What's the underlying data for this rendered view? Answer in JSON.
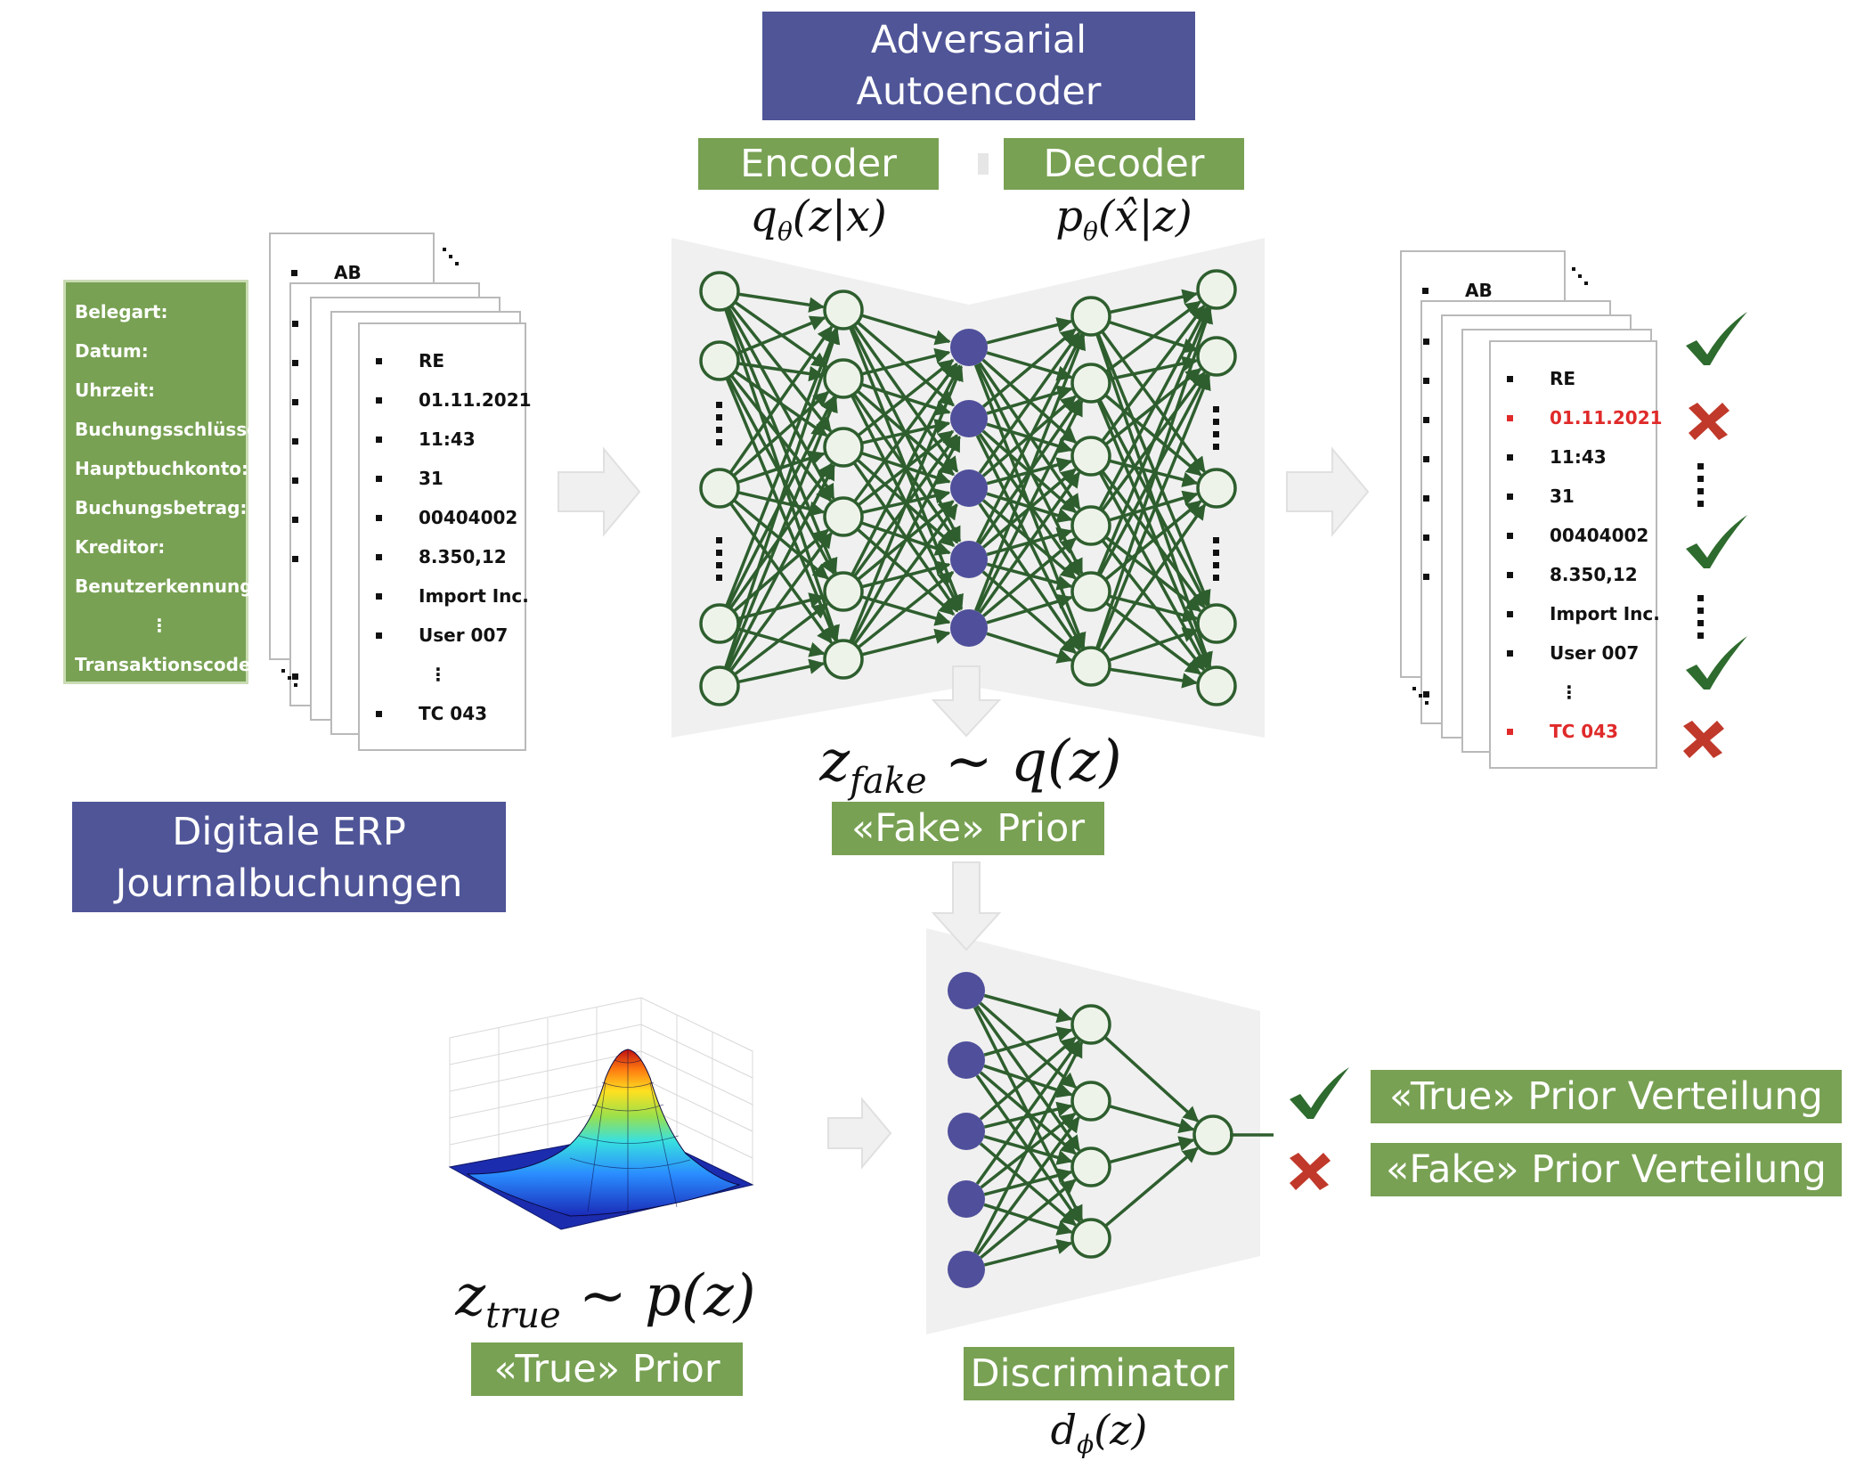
{
  "title_box": {
    "line1": "Adversarial",
    "line2": "Autoencoder"
  },
  "encoder": {
    "label": "Encoder",
    "formula": "qθ(z|x)"
  },
  "decoder": {
    "label": "Decoder",
    "formula": "pθ(x̂|z)"
  },
  "input_fields": {
    "labels": [
      "Belegart:",
      "Datum:",
      "Uhrzeit:",
      "Buchungsschlüssel:",
      "Hauptbuchkonto:",
      "Buchungsbetrag:",
      "Kreditor:",
      "Benutzerkennung:",
      "⋮",
      "Transaktionscode:"
    ]
  },
  "input_record": {
    "back_card_value": "AB",
    "values": [
      "RE",
      "01.11.2021",
      "11:43",
      "31",
      "00404002",
      "8.350,12",
      "Import Inc.",
      "User 007",
      "⋮",
      "TC 043"
    ]
  },
  "output_record": {
    "back_card_value": "AB",
    "values": [
      "RE",
      "01.11.2021",
      "11:43",
      "31",
      "00404002",
      "8.350,12",
      "Import Inc.",
      "User 007",
      "⋮",
      "TC 043"
    ],
    "anomalous": [
      false,
      true,
      false,
      false,
      false,
      false,
      false,
      false,
      false,
      true
    ]
  },
  "erp_box": {
    "line1": "Digitale ERP",
    "line2": "Journalbuchungen"
  },
  "fake_prior": {
    "formula": "z_fake ~ q(z)",
    "label": "«Fake» Prior"
  },
  "true_prior": {
    "formula": "z_true ~ p(z)",
    "label": "«True» Prior"
  },
  "discriminator": {
    "label": "Discriminator",
    "formula": "dφ(z)"
  },
  "outputs": {
    "true_label": "«True» Prior Verteilung",
    "fake_label": "«Fake» Prior Verteilung"
  },
  "colors": {
    "title_blue": "#4F5597",
    "label_green": "#78A153",
    "net_green": "#2E5E2E",
    "latent_purple": "#4F4F9B",
    "check_green": "#2E6B2E",
    "cross_red": "#C0392B",
    "anomaly_red": "#E02A2A"
  },
  "icons": {
    "check": "check-icon",
    "cross": "cross-icon",
    "arrow": "arrow-right-icon"
  }
}
